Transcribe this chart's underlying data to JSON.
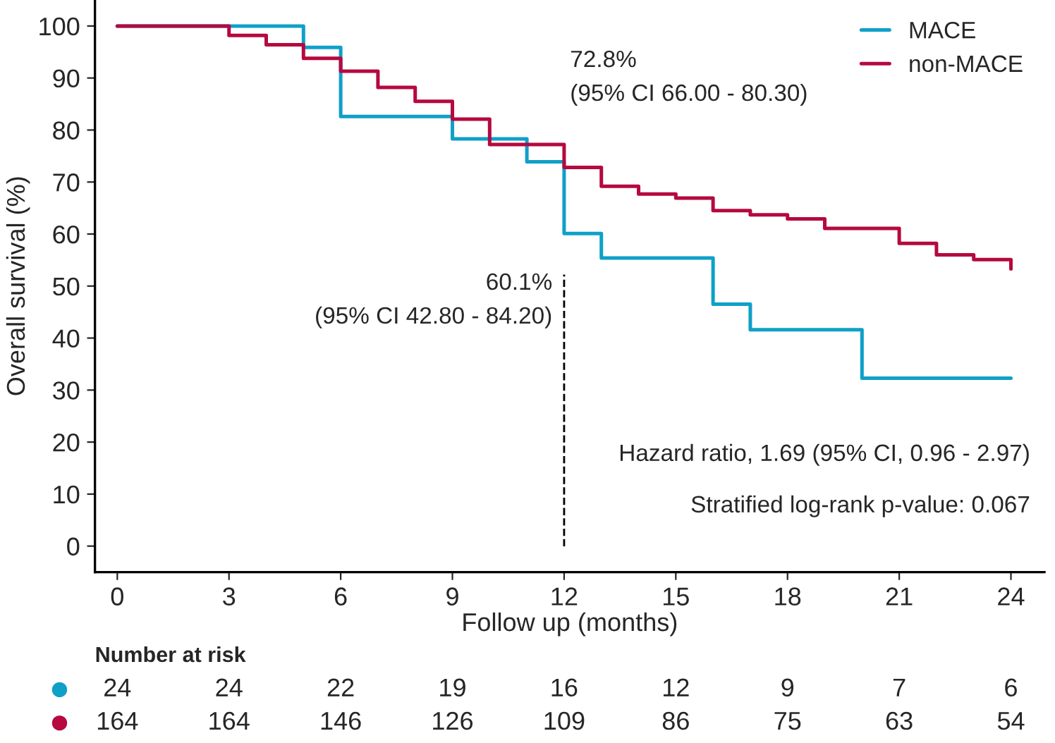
{
  "chart_data": [
    {
      "type": "step",
      "xlabel": "Follow up (months)",
      "ylabel": "Overall survival (%)",
      "series": [
        {
          "name": "MACE",
          "color": "#0fa0c8",
          "x": [
            0,
            5,
            6,
            9,
            11,
            12,
            13,
            16,
            17,
            20,
            24
          ],
          "values": [
            100,
            95.9,
            82.6,
            78.3,
            73.9,
            60.1,
            55.4,
            46.5,
            41.6,
            32.3,
            32.3
          ]
        },
        {
          "name": "non-MACE",
          "color": "#b5093f",
          "x": [
            0,
            3,
            4,
            5,
            6,
            7,
            8,
            9,
            10,
            12,
            13,
            14,
            15,
            16,
            17,
            18,
            19,
            21,
            22,
            23,
            24
          ],
          "values": [
            100,
            98.2,
            96.4,
            93.8,
            91.3,
            88.2,
            85.5,
            82.1,
            77.2,
            72.8,
            69.2,
            67.7,
            66.9,
            64.5,
            63.7,
            62.9,
            61.1,
            58.2,
            56.0,
            55.1,
            53.3
          ]
        }
      ],
      "xlim": [
        -0.6,
        24.9
      ],
      "ylim": [
        -5,
        105
      ],
      "xticks": [
        0,
        3,
        6,
        9,
        12,
        15,
        18,
        21,
        24
      ],
      "yticks": [
        0,
        10,
        20,
        30,
        40,
        50,
        60,
        70,
        80,
        90,
        100
      ],
      "ref_lines": [
        {
          "axis": "x",
          "value": 12,
          "line_style": "dashed",
          "color": "#000000"
        }
      ],
      "annotations": [
        {
          "text": "60.1%\n(95% CI 42.80 - 84.20)",
          "x": 12,
          "y": 60.1
        },
        {
          "text": "72.8%\n(95% CI 66.00 - 80.30)",
          "x": 12,
          "y": 72.8
        },
        "Hazard ratio, 1.69 (95% CI, 0.96 - 2.97)",
        "Stratified log-rank p-value: 0.067"
      ],
      "legend": "top right",
      "grid": false
    },
    {
      "type": "other",
      "title": "Number at risk",
      "annotations": [
        "24",
        "24",
        "22",
        "19",
        "16",
        "12",
        "9",
        "7",
        "6",
        "164",
        "164",
        "146",
        "126",
        "109",
        "86",
        "75",
        "63",
        "54"
      ]
    }
  ]
}
